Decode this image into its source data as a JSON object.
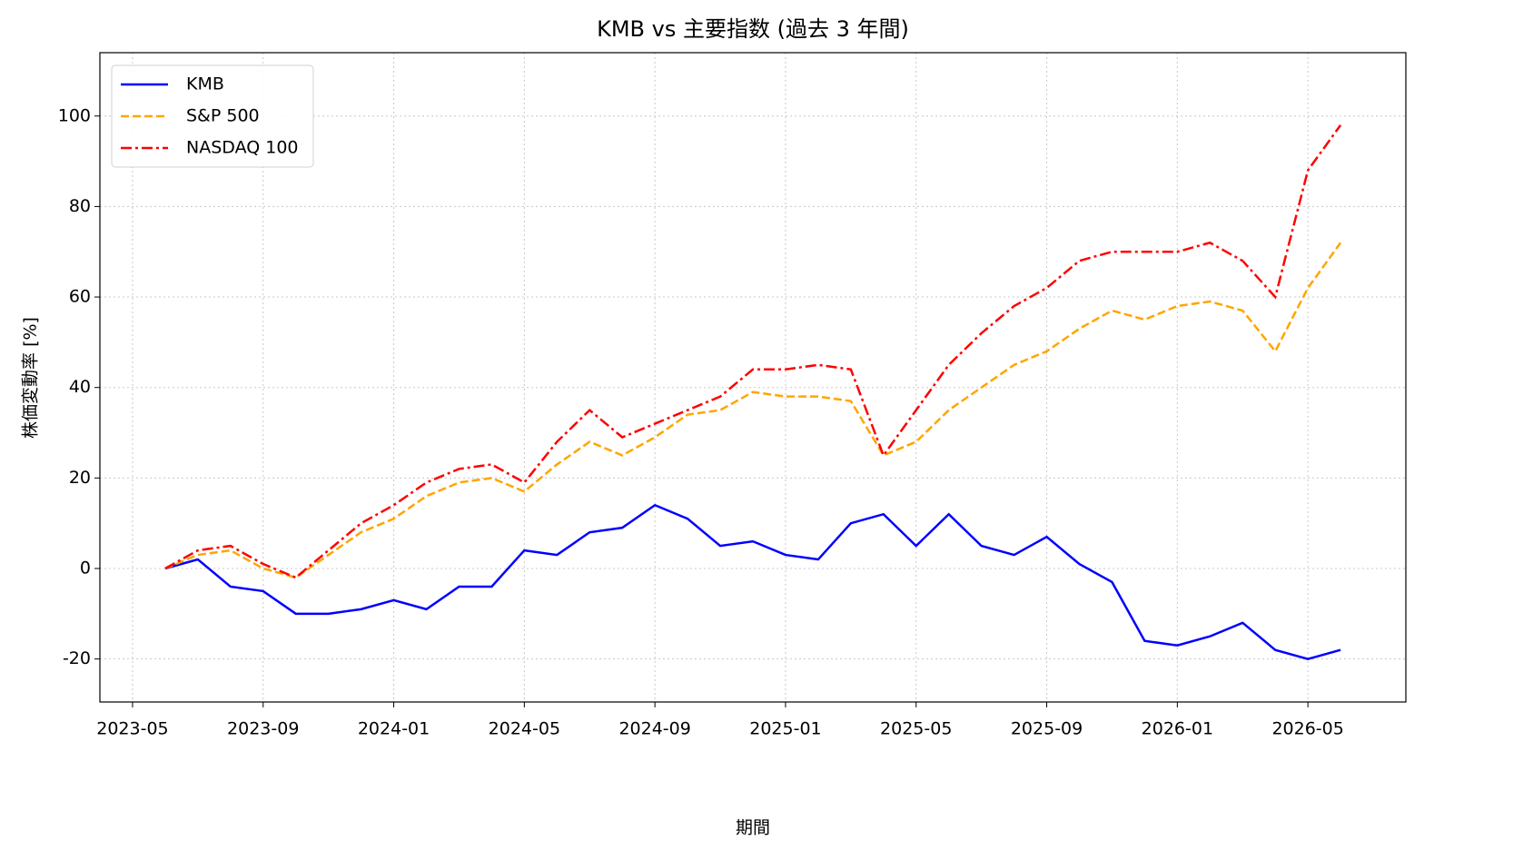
{
  "chart_data": {
    "type": "line",
    "title": "KMB vs 主要指数 (過去 3 年間)",
    "x_label": "期間",
    "y_label": "株価変動率 [%]",
    "x": [
      "2023-06",
      "2023-07",
      "2023-08",
      "2023-09",
      "2023-10",
      "2023-11",
      "2023-12",
      "2024-01",
      "2024-02",
      "2024-03",
      "2024-04",
      "2024-05",
      "2024-06",
      "2024-07",
      "2024-08",
      "2024-09",
      "2024-10",
      "2024-11",
      "2024-12",
      "2025-01",
      "2025-02",
      "2025-03",
      "2025-04",
      "2025-05",
      "2025-06",
      "2025-07",
      "2025-08",
      "2025-09",
      "2025-10",
      "2025-11",
      "2025-12",
      "2026-01",
      "2026-02",
      "2026-03",
      "2026-04",
      "2026-05",
      "2026-06"
    ],
    "series": [
      {
        "name": "KMB",
        "color": "#0000ff",
        "linestyle": "solid",
        "values": [
          0,
          2,
          -4,
          -5,
          -10,
          -10,
          -9,
          -7,
          -9,
          -4,
          -4,
          4,
          3,
          8,
          9,
          14,
          11,
          5,
          6,
          3,
          2,
          10,
          12,
          5,
          12,
          5,
          3,
          7,
          1,
          -3,
          -16,
          -17,
          -15,
          -12,
          -18,
          -20,
          -18
        ]
      },
      {
        "name": "S&P 500",
        "color": "#ffa500",
        "linestyle": "dashed",
        "values": [
          0,
          3,
          4,
          0,
          -2,
          3,
          8,
          11,
          16,
          19,
          20,
          17,
          23,
          28,
          25,
          29,
          34,
          35,
          39,
          38,
          38,
          37,
          25,
          28,
          35,
          40,
          45,
          48,
          53,
          57,
          55,
          58,
          59,
          57,
          48,
          62,
          72
        ]
      },
      {
        "name": "NASDAQ 100",
        "color": "#ff0000",
        "linestyle": "dashdot",
        "values": [
          0,
          4,
          5,
          1,
          -2,
          4,
          10,
          14,
          19,
          22,
          23,
          19,
          28,
          35,
          29,
          32,
          35,
          38,
          44,
          44,
          45,
          44,
          25,
          35,
          45,
          52,
          58,
          62,
          68,
          70,
          70,
          70,
          72,
          68,
          60,
          88,
          98
        ]
      }
    ],
    "xlim": [
      "2023-04",
      "2026-08"
    ],
    "xticks": [
      "2023-05",
      "2023-09",
      "2024-01",
      "2024-05",
      "2024-09",
      "2025-01",
      "2025-05",
      "2025-09",
      "2026-01",
      "2026-05"
    ],
    "ylim": [
      -29.5,
      114
    ],
    "yticks": [
      -20,
      0,
      20,
      40,
      60,
      80,
      100
    ],
    "grid": true,
    "legend": "upper-left"
  }
}
